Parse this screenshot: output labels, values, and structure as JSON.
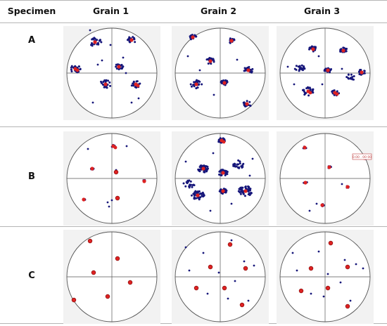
{
  "table": {
    "headers": [
      "Specimen",
      "Grain 1",
      "Grain 2",
      "Grain 3"
    ],
    "rows": [
      {
        "specimen": "A",
        "panels": [
          {
            "grain": "Grain 1",
            "clusters": [
              [
                40,
                20,
                1,
                0,
                0.11,
                22
              ],
              [
                92,
                17,
                1,
                0,
                0.08,
                20
              ],
              [
                12,
                58,
                1,
                1,
                0.09,
                24
              ],
              [
                74,
                55,
                1,
                0,
                0.07,
                22
              ],
              [
                55,
                80,
                1,
                0,
                0.1,
                24
              ],
              [
                98,
                80,
                1,
                1,
                0.08,
                20
              ]
            ],
            "dots": [
              [
                33,
                3
              ],
              [
                80,
                42
              ],
              [
                62,
                24
              ],
              [
                37,
                106
              ],
              [
                92,
                106
              ],
              [
                102,
                100
              ],
              [
                84,
                64
              ],
              [
                44,
                52
              ],
              [
                50,
                46
              ]
            ]
          },
          {
            "grain": "Grain 2",
            "clusters": [
              [
                25,
                13,
                1,
                0,
                0.06,
                18
              ],
              [
                80,
                18,
                1,
                0,
                0.06,
                16
              ],
              [
                50,
                47,
                1,
                0,
                0.08,
                20
              ],
              [
                104,
                60,
                1,
                0,
                0.08,
                22
              ],
              [
                30,
                80,
                1,
                0,
                0.1,
                24
              ],
              [
                70,
                78,
                1,
                0,
                0.07,
                18
              ],
              [
                102,
                108,
                1,
                0,
                0.08,
                18
              ]
            ],
            "dots": [
              [
                35,
                60
              ],
              [
                55,
                95
              ],
              [
                88,
                45
              ],
              [
                18,
                40
              ]
            ]
          },
          {
            "grain": "Grain 3",
            "clusters": [
              [
                47,
                30,
                1,
                0,
                0.07,
                20
              ],
              [
                90,
                32,
                1,
                0,
                0.07,
                18
              ],
              [
                28,
                57,
                0,
                0,
                0.09,
                20
              ],
              [
                68,
                60,
                1,
                0,
                0.06,
                18
              ],
              [
                116,
                63,
                1,
                0,
                0.07,
                18
              ],
              [
                40,
                90,
                1,
                1,
                0.1,
                26
              ],
              [
                78,
                92,
                1,
                1,
                0.07,
                18
              ],
              [
                100,
                70,
                0,
                0,
                0.08,
                14
              ]
            ],
            "dots": [
              [
                11,
                55
              ],
              [
                60,
                80
              ],
              [
                20,
                80
              ],
              [
                88,
                58
              ],
              [
                55,
                40
              ]
            ]
          }
        ]
      },
      {
        "specimen": "B",
        "panels": [
          {
            "grain": "Grain 1",
            "clusters": [
              [
                66,
                18,
                1,
                1,
                0.03,
                5
              ],
              [
                36,
                50,
                1,
                0,
                0.03,
                6
              ],
              [
                110,
                68,
                1,
                0,
                0.03,
                5
              ],
              [
                24,
                94,
                1,
                0,
                0.03,
                5
              ]
            ],
            "dots": [
              [
                70,
                55
              ],
              [
                70,
                52
              ],
              [
                30,
                22
              ],
              [
                85,
                18
              ],
              [
                64,
                95
              ],
              [
                60,
                104
              ],
              [
                58,
                98
              ],
              [
                72,
                92
              ]
            ],
            "reds": [
              [
                70,
                55
              ],
              [
                72,
                92
              ]
            ]
          },
          {
            "grain": "Grain 2",
            "clusters": [
              [
                66,
                10,
                1,
                1,
                0.06,
                40
              ],
              [
                40,
                50,
                1,
                0,
                0.09,
                42
              ],
              [
                68,
                56,
                1,
                0,
                0.08,
                34
              ],
              [
                90,
                44,
                0,
                0,
                0.1,
                24
              ],
              [
                100,
                82,
                1,
                0,
                0.12,
                44
              ],
              [
                32,
                88,
                1,
                0,
                0.11,
                42
              ],
              [
                68,
                82,
                1,
                0,
                0.06,
                36
              ],
              [
                20,
                72,
                0,
                0,
                0.1,
                20
              ]
            ],
            "dots": [
              [
                15,
                40
              ],
              [
                54,
                28
              ],
              [
                110,
                36
              ],
              [
                80,
                100
              ],
              [
                50,
                110
              ],
              [
                106,
                60
              ]
            ]
          },
          {
            "grain": "Grain 3",
            "clusters": [
              [
                35,
                20,
                1,
                0,
                0.03,
                8
              ],
              [
                120,
                35,
                1,
                0,
                0.03,
                6
              ],
              [
                70,
                48,
                1,
                0,
                0.03,
                7
              ],
              [
                36,
                70,
                1,
                0,
                0.03,
                6
              ],
              [
                96,
                76,
                1,
                0,
                0.03,
                6
              ],
              [
                60,
                102,
                1,
                0,
                0.03,
                7
              ]
            ],
            "dots": [
              [
                52,
                100
              ],
              [
                42,
                110
              ],
              [
                88,
                72
              ]
            ],
            "label": "0.00 . 00 00"
          }
        ]
      },
      {
        "specimen": "C",
        "panels": [
          {
            "grain": "Grain 1",
            "clusters": [],
            "dots": [],
            "reds": [
              [
                33,
                13
              ],
              [
                72,
                38
              ],
              [
                38,
                58
              ],
              [
                90,
                72
              ],
              [
                58,
                92
              ],
              [
                10,
                97
              ]
            ]
          },
          {
            "grain": "Grain 2",
            "clusters": [],
            "dots": [
              [
                15,
                22
              ],
              [
                40,
                30
              ],
              [
                80,
                12
              ],
              [
                98,
                42
              ],
              [
                112,
                48
              ],
              [
                20,
                55
              ],
              [
                62,
                58
              ],
              [
                85,
                70
              ],
              [
                104,
                98
              ],
              [
                46,
                88
              ],
              [
                75,
                95
              ]
            ],
            "reds": [
              [
                78,
                18
              ],
              [
                50,
                50
              ],
              [
                100,
                52
              ],
              [
                30,
                80
              ],
              [
                70,
                80
              ],
              [
                95,
                104
              ]
            ]
          },
          {
            "grain": "Grain 3",
            "clusters": [],
            "dots": [
              [
                18,
                30
              ],
              [
                55,
                28
              ],
              [
                72,
                15
              ],
              [
                92,
                40
              ],
              [
                108,
                46
              ],
              [
                24,
                55
              ],
              [
                68,
                60
              ],
              [
                86,
                72
              ],
              [
                100,
                98
              ],
              [
                44,
                88
              ],
              [
                62,
                92
              ],
              [
                118,
                52
              ]
            ],
            "reds": [
              [
                72,
                16
              ],
              [
                44,
                52
              ],
              [
                96,
                50
              ],
              [
                30,
                84
              ],
              [
                68,
                80
              ],
              [
                96,
                106
              ]
            ]
          }
        ]
      }
    ]
  },
  "colors": {
    "background": "#ffffff",
    "panel_bg": "#f2f2f2",
    "circle": "#555555",
    "blue": "#16167a",
    "red": "#dd2222",
    "rule": "#b5b5b5"
  }
}
